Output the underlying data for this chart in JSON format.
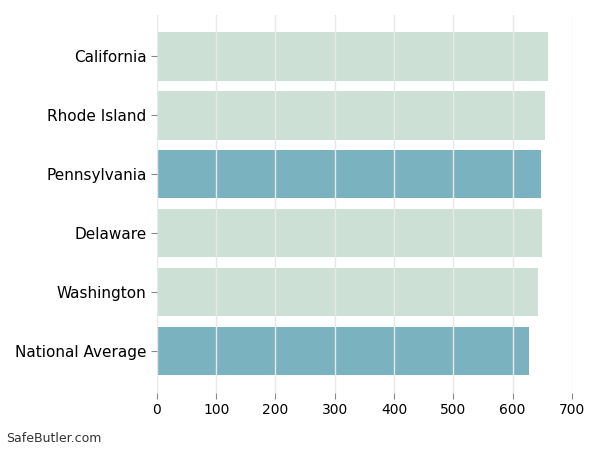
{
  "categories": [
    "California",
    "Rhode Island",
    "Pennsylvania",
    "Delaware",
    "Washington",
    "National Average"
  ],
  "values": [
    660,
    655,
    648,
    650,
    643,
    627
  ],
  "bar_colors": [
    "#cce0d5",
    "#cce0d5",
    "#7ab3bf",
    "#cce0d5",
    "#cce0d5",
    "#7ab3bf"
  ],
  "xlim": [
    0,
    700
  ],
  "xticks": [
    0,
    100,
    200,
    300,
    400,
    500,
    600,
    700
  ],
  "background_color": "#ffffff",
  "grid_color": "#e8e8e8",
  "bar_height": 0.82,
  "footer_text": "SafeButler.com",
  "figsize": [
    6.0,
    4.5
  ],
  "dpi": 100,
  "label_fontsize": 11,
  "tick_fontsize": 10
}
